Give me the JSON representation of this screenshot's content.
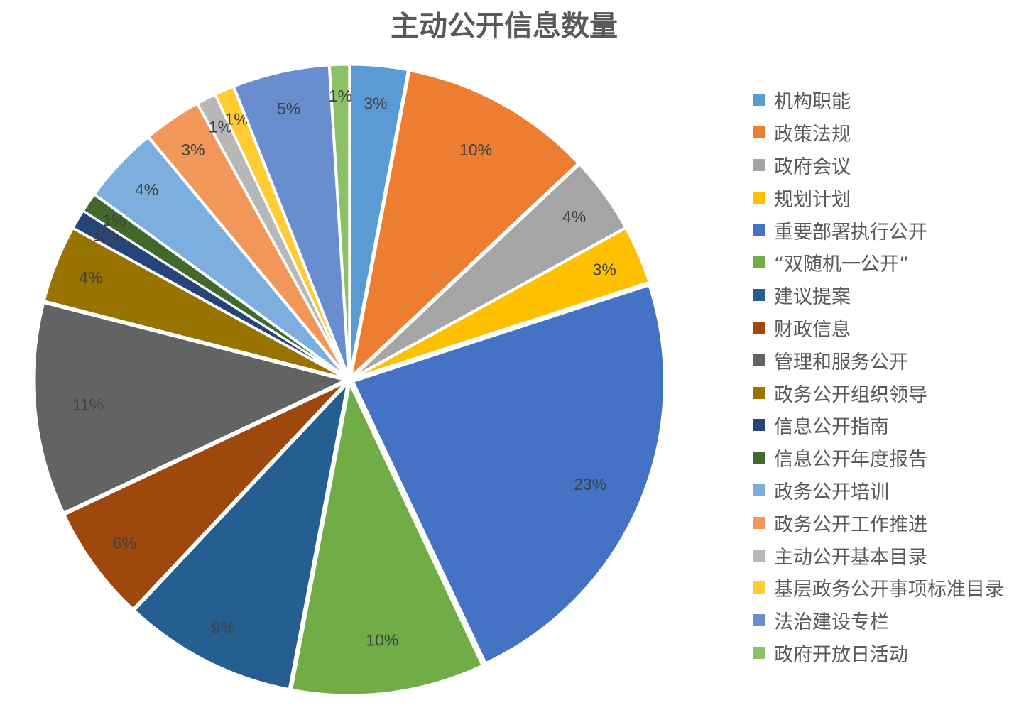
{
  "chart_data": {
    "type": "pie",
    "title": "主动公开信息数量",
    "legend_position": "right",
    "slices": [
      {
        "label": "机构职能",
        "percent": 3,
        "color": "#5B9BD5"
      },
      {
        "label": "政策法规",
        "percent": 10,
        "color": "#ED7D31"
      },
      {
        "label": "政府会议",
        "percent": 4,
        "color": "#A5A5A5"
      },
      {
        "label": "规划计划",
        "percent": 3,
        "color": "#FFC000"
      },
      {
        "label": "重要部署执行公开",
        "percent": 23,
        "color": "#4472C4"
      },
      {
        "label": "“双随机一公开”",
        "percent": 10,
        "color": "#70AD47"
      },
      {
        "label": "建议提案",
        "percent": 9,
        "color": "#255E91"
      },
      {
        "label": "财政信息",
        "percent": 6,
        "color": "#9E480E"
      },
      {
        "label": "管理和服务公开",
        "percent": 11,
        "color": "#636363"
      },
      {
        "label": "政务公开组织领导",
        "percent": 4,
        "color": "#997300"
      },
      {
        "label": "信息公开指南",
        "percent": 1,
        "color": "#264478"
      },
      {
        "label": "信息公开年度报告",
        "percent": 1,
        "color": "#43682B"
      },
      {
        "label": "政务公开培训",
        "percent": 4,
        "color": "#7CAFDD"
      },
      {
        "label": "政务公开工作推进",
        "percent": 3,
        "color": "#F1975A"
      },
      {
        "label": "主动公开基本目录",
        "percent": 1,
        "color": "#B7B7B7"
      },
      {
        "label": "基层政务公开事项标准目录",
        "percent": 1,
        "color": "#FFCD33"
      },
      {
        "label": "法治建设专栏",
        "percent": 5,
        "color": "#698ED0"
      },
      {
        "label": "政府开放日活动",
        "percent": 1,
        "color": "#8CC168"
      }
    ]
  }
}
